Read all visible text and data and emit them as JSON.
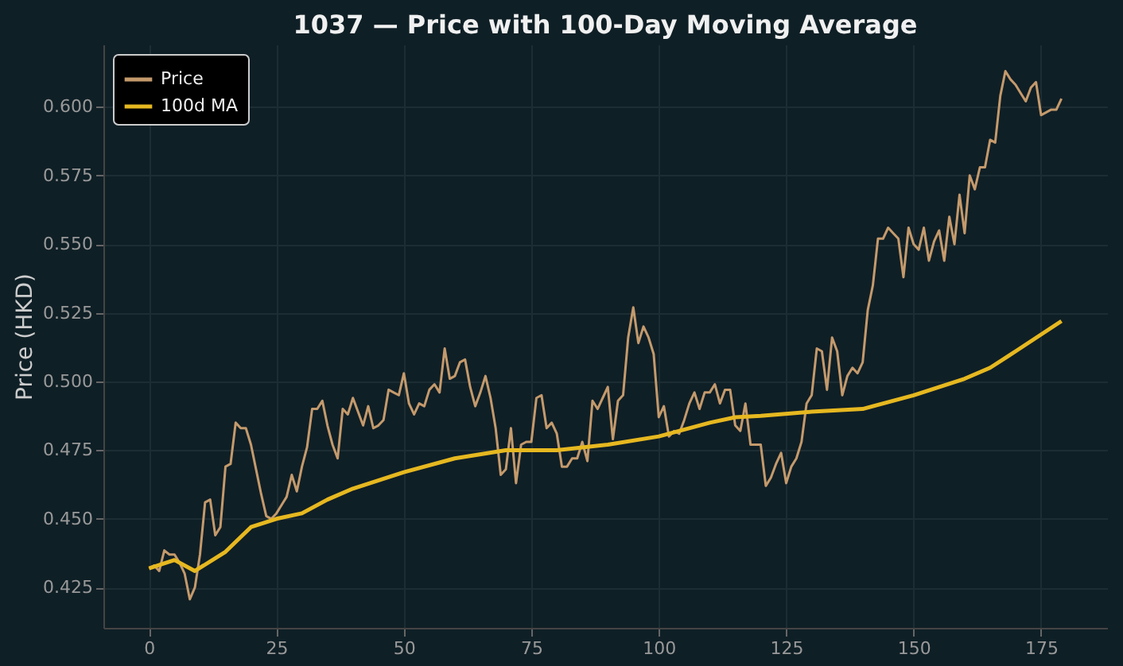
{
  "chart_data": {
    "type": "line",
    "title": "1037 — Price with 100-Day Moving Average",
    "ylabel": "Price (HKD)",
    "xlim": [
      -8.95,
      187.95
    ],
    "xticks": [
      0,
      25,
      50,
      75,
      100,
      125,
      150,
      175
    ],
    "ylim": [
      0.4103,
      0.6227
    ],
    "yticks": [
      0.425,
      {
        "value": 0.45,
        "label": "0.450"
      },
      0.475,
      {
        "value": 0.5,
        "label": "0.500"
      },
      0.525,
      {
        "value": 0.55,
        "label": "0.550"
      },
      0.575,
      {
        "value": 0.6,
        "label": "0.600"
      }
    ],
    "grid": true,
    "legend": "top left",
    "line_style": "solid",
    "marker": "none",
    "series": [
      {
        "name": "Price",
        "color": "#c49a6c",
        "x": [
          0,
          1,
          2,
          3,
          4,
          5,
          6,
          7,
          8,
          9,
          10,
          11,
          12,
          13,
          14,
          15,
          16,
          17,
          18,
          19,
          20,
          21,
          22,
          23,
          24,
          25,
          26,
          27,
          28,
          29,
          30,
          31,
          32,
          33,
          34,
          35,
          36,
          37,
          38,
          39,
          40,
          41,
          42,
          43,
          44,
          45,
          46,
          47,
          48,
          49,
          50,
          51,
          52,
          53,
          54,
          55,
          56,
          57,
          58,
          59,
          60,
          61,
          62,
          63,
          64,
          65,
          66,
          67,
          68,
          69,
          70,
          71,
          72,
          73,
          74,
          75,
          76,
          77,
          78,
          79,
          80,
          81,
          82,
          83,
          84,
          85,
          86,
          87,
          88,
          89,
          90,
          91,
          92,
          93,
          94,
          95,
          96,
          97,
          98,
          99,
          100,
          101,
          102,
          103,
          104,
          105,
          106,
          107,
          108,
          109,
          110,
          111,
          112,
          113,
          114,
          115,
          116,
          117,
          118,
          119,
          120,
          121,
          122,
          123,
          124,
          125,
          126,
          127,
          128,
          129,
          130,
          131,
          132,
          133,
          134,
          135,
          136,
          137,
          138,
          139,
          140,
          141,
          142,
          143,
          144,
          145,
          146,
          147,
          148,
          149,
          150,
          151,
          152,
          153,
          154,
          155,
          156,
          157,
          158,
          159,
          160,
          161,
          162,
          163,
          164,
          165,
          166,
          167,
          168,
          169,
          170,
          171,
          172,
          173,
          174,
          175,
          176,
          177,
          178,
          179
        ],
        "values": [
          0.432,
          0.433,
          0.431,
          0.4385,
          0.437,
          0.437,
          0.434,
          0.43,
          0.4207,
          0.425,
          0.437,
          0.456,
          0.457,
          0.444,
          0.447,
          0.469,
          0.47,
          0.485,
          0.483,
          0.483,
          0.477,
          0.468,
          0.459,
          0.451,
          0.45,
          0.452,
          0.455,
          0.458,
          0.466,
          0.46,
          0.469,
          0.476,
          0.49,
          0.49,
          0.493,
          0.484,
          0.477,
          0.472,
          0.49,
          0.488,
          0.494,
          0.489,
          0.484,
          0.491,
          0.483,
          0.484,
          0.486,
          0.497,
          0.496,
          0.495,
          0.503,
          0.492,
          0.488,
          0.492,
          0.491,
          0.497,
          0.499,
          0.496,
          0.512,
          0.501,
          0.502,
          0.507,
          0.508,
          0.498,
          0.491,
          0.496,
          0.502,
          0.494,
          0.483,
          0.466,
          0.468,
          0.483,
          0.463,
          0.477,
          0.478,
          0.478,
          0.494,
          0.495,
          0.483,
          0.485,
          0.481,
          0.469,
          0.469,
          0.472,
          0.472,
          0.478,
          0.471,
          0.493,
          0.49,
          0.494,
          0.498,
          0.479,
          0.493,
          0.495,
          0.516,
          0.527,
          0.514,
          0.52,
          0.516,
          0.51,
          0.487,
          0.491,
          0.48,
          0.482,
          0.481,
          0.486,
          0.492,
          0.496,
          0.49,
          0.496,
          0.496,
          0.499,
          0.492,
          0.497,
          0.497,
          0.484,
          0.482,
          0.492,
          0.477,
          0.477,
          0.477,
          0.462,
          0.465,
          0.47,
          0.474,
          0.463,
          0.469,
          0.472,
          0.478,
          0.492,
          0.495,
          0.512,
          0.511,
          0.497,
          0.516,
          0.511,
          0.495,
          0.502,
          0.505,
          0.503,
          0.507,
          0.526,
          0.535,
          0.552,
          0.552,
          0.556,
          0.554,
          0.552,
          0.538,
          0.556,
          0.55,
          0.548,
          0.556,
          0.544,
          0.551,
          0.555,
          0.544,
          0.56,
          0.55,
          0.568,
          0.554,
          0.575,
          0.57,
          0.578,
          0.578,
          0.588,
          0.587,
          0.604,
          0.613,
          0.61,
          0.608,
          0.605,
          0.602,
          0.607,
          0.609,
          0.597,
          0.598,
          0.599,
          0.599,
          0.603
        ]
      },
      {
        "name": "100d MA",
        "color": "#e6b820",
        "x": [
          0,
          5,
          9,
          15,
          20,
          25,
          30,
          35,
          40,
          50,
          60,
          70,
          80,
          90,
          100,
          110,
          115,
          120,
          130,
          140,
          150,
          160,
          165,
          170,
          179
        ],
        "values": [
          0.432,
          0.435,
          0.431,
          0.438,
          0.447,
          0.45,
          0.452,
          0.457,
          0.461,
          0.467,
          0.472,
          0.475,
          0.475,
          0.477,
          0.48,
          0.485,
          0.487,
          0.4875,
          0.489,
          0.49,
          0.495,
          0.501,
          0.505,
          0.511,
          0.522
        ]
      }
    ]
  }
}
